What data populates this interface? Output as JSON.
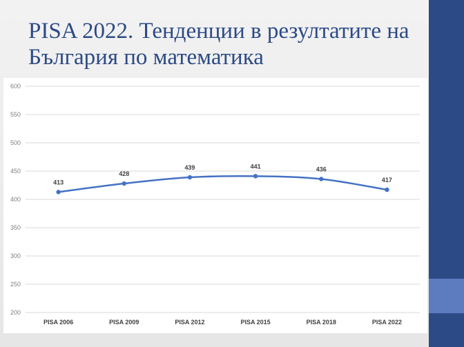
{
  "slide": {
    "title": "PISA 2022. Тенденции в резултатите на България по математика"
  },
  "colors": {
    "title": "#2c4a86",
    "side_bar": "#2c4a86",
    "side_accent": "#5d7cbf",
    "series_line": "#4472c4"
  },
  "chart_data": {
    "type": "line",
    "title": "",
    "xlabel": "",
    "ylabel": "",
    "categories": [
      "PISA 2006",
      "PISA 2009",
      "PISA 2012",
      "PISA 2015",
      "PISA 2018",
      "PISA 2022"
    ],
    "series": [
      {
        "values": [
          413,
          428,
          439,
          441,
          436,
          417
        ]
      }
    ],
    "ylim": [
      200,
      600
    ],
    "yticks": [
      200,
      250,
      300,
      350,
      400,
      450,
      500,
      550,
      600
    ],
    "grid": true,
    "legend": "none",
    "data_labels": true
  }
}
